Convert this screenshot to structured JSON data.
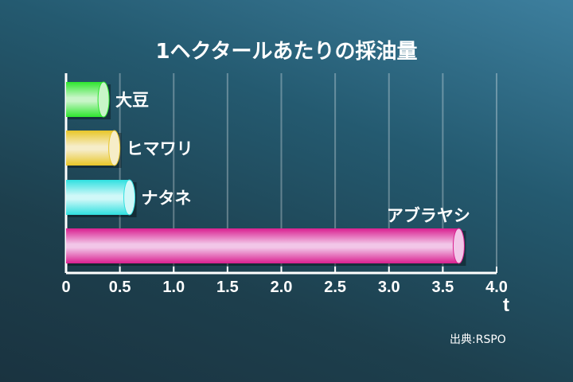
{
  "chart_data": {
    "type": "bar",
    "orientation": "horizontal",
    "title": "1ヘクタールあたりの採油量",
    "categories": [
      "大豆",
      "ヒマワリ",
      "ナタネ",
      "アブラヤシ"
    ],
    "values": [
      0.4,
      0.5,
      0.64,
      3.7
    ],
    "xlabel": "t",
    "xlim": [
      0,
      4.0
    ],
    "xticks": [
      "0",
      "0.5",
      "1.0",
      "1.5",
      "2.0",
      "2.5",
      "3.0",
      "3.5",
      "4.0"
    ],
    "grid": true,
    "colors": [
      "#2ee62e",
      "#e8c628",
      "#2fe0e0",
      "#d91f8f"
    ],
    "source": "出典:RSPO"
  }
}
